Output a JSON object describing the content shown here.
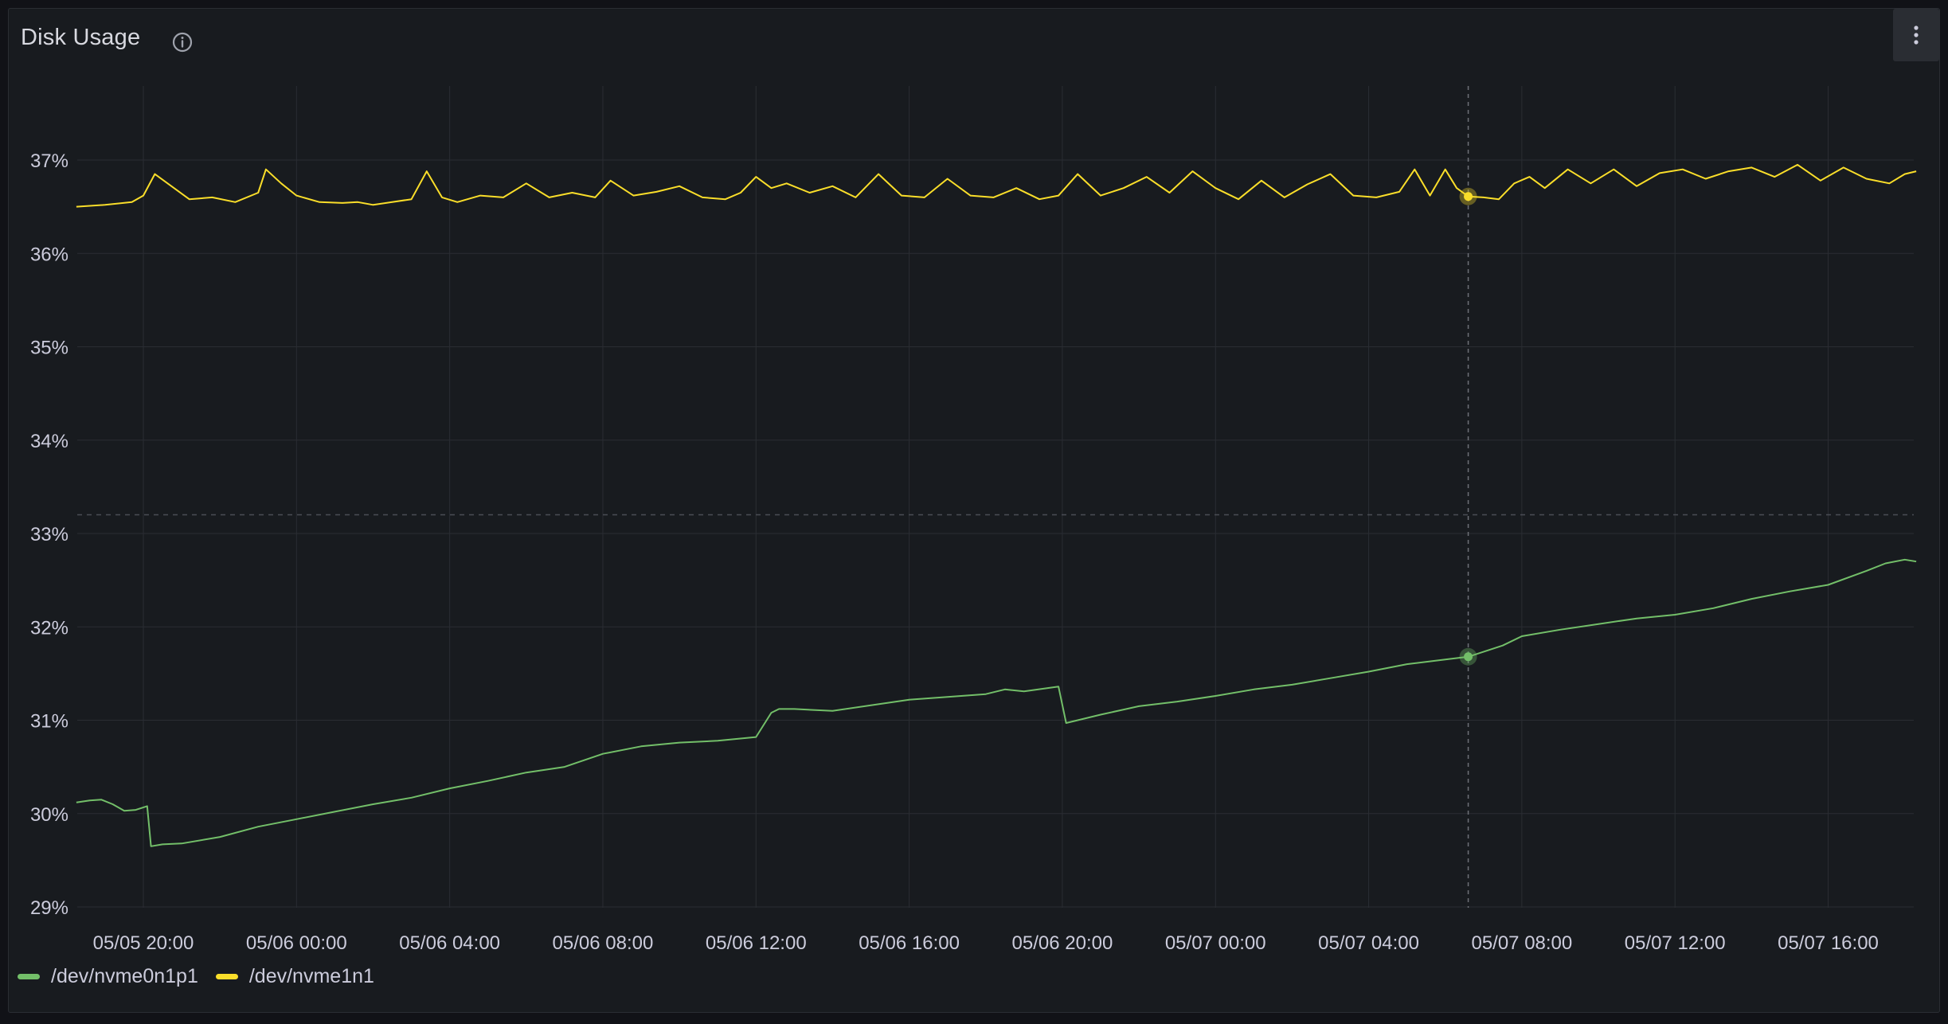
{
  "panel": {
    "title": "Disk Usage",
    "info_icon": "info-circle-icon",
    "menu_icon": "kebab-menu-icon"
  },
  "colors": {
    "background": "#181b1f",
    "grid": "#2a2d33",
    "text": "#ccccdc",
    "nvme0n1p1": "#73bf69",
    "nvme1n1": "#fade2a"
  },
  "legend": [
    {
      "label": "/dev/nvme0n1p1",
      "color": "#73bf69"
    },
    {
      "label": "/dev/nvme1n1",
      "color": "#fade2a"
    }
  ],
  "chart_data": {
    "type": "line",
    "title": "Disk Usage",
    "xlabel": "",
    "ylabel": "",
    "y_unit": "%",
    "ylim": [
      29,
      37.8
    ],
    "y_ticks": [
      "29%",
      "30%",
      "31%",
      "32%",
      "33%",
      "34%",
      "35%",
      "36%",
      "37%"
    ],
    "y_tick_values": [
      29,
      30,
      31,
      32,
      33,
      34,
      35,
      36,
      37
    ],
    "x_ticks": [
      "05/05 20:00",
      "05/06 00:00",
      "05/06 04:00",
      "05/06 08:00",
      "05/06 12:00",
      "05/06 16:00",
      "05/06 20:00",
      "05/07 00:00",
      "05/07 04:00",
      "05/07 08:00",
      "05/07 12:00",
      "05/07 16:00"
    ],
    "x_tick_hours": [
      0,
      4,
      8,
      12,
      16,
      20,
      24,
      28,
      32,
      36,
      40,
      44
    ],
    "x_range_hours": [
      -1.75,
      46.3
    ],
    "hover_hour": 34.6,
    "hover_values": {
      "/dev/nvme0n1p1": 31.68,
      "/dev/nvme1n1": 36.61
    },
    "reference_line": 33.2,
    "grid": true,
    "legend_position": "bottom-left",
    "series": [
      {
        "name": "/dev/nvme0n1p1",
        "color": "#73bf69",
        "x": [
          -1.75,
          -1.4,
          -1.1,
          -0.8,
          -0.5,
          -0.2,
          0.1,
          0.2,
          0.5,
          1.0,
          2.0,
          3.0,
          4.0,
          5.0,
          6.0,
          7.0,
          8.0,
          9.0,
          10.0,
          11.0,
          12.0,
          13.0,
          14.0,
          15.0,
          16.0,
          16.4,
          16.6,
          17.0,
          18.0,
          19.0,
          20.0,
          21.0,
          22.0,
          22.5,
          23.0,
          23.9,
          24.1,
          24.4,
          25.0,
          26.0,
          27.0,
          28.0,
          29.0,
          30.0,
          31.0,
          32.0,
          33.0,
          34.0,
          34.6,
          35.5,
          36.0,
          37.0,
          38.0,
          39.0,
          40.0,
          41.0,
          42.0,
          43.0,
          44.0,
          45.0,
          45.5,
          46.0,
          46.3
        ],
        "y": [
          30.12,
          30.14,
          30.15,
          30.1,
          30.03,
          30.04,
          30.08,
          29.65,
          29.67,
          29.68,
          29.75,
          29.86,
          29.94,
          30.02,
          30.1,
          30.17,
          30.27,
          30.35,
          30.44,
          30.5,
          30.64,
          30.72,
          30.76,
          30.78,
          30.82,
          31.08,
          31.12,
          31.12,
          31.1,
          31.16,
          31.22,
          31.25,
          31.28,
          31.33,
          31.31,
          31.36,
          30.97,
          31.0,
          31.06,
          31.15,
          31.2,
          31.26,
          31.33,
          31.38,
          31.45,
          31.52,
          31.6,
          31.65,
          31.68,
          31.8,
          31.9,
          31.97,
          32.03,
          32.09,
          32.13,
          32.2,
          32.3,
          32.38,
          32.45,
          32.6,
          32.68,
          32.72,
          32.7
        ]
      },
      {
        "name": "/dev/nvme1n1",
        "color": "#fade2a",
        "x": [
          -1.75,
          -1.0,
          -0.3,
          0.0,
          0.3,
          0.8,
          1.2,
          1.8,
          2.4,
          3.0,
          3.2,
          3.6,
          4.0,
          4.6,
          5.2,
          5.6,
          6.0,
          7.0,
          7.4,
          7.8,
          8.2,
          8.8,
          9.4,
          10.0,
          10.6,
          11.2,
          11.8,
          12.2,
          12.8,
          13.4,
          14.0,
          14.6,
          15.2,
          15.6,
          16.0,
          16.4,
          16.8,
          17.4,
          18.0,
          18.6,
          19.2,
          19.8,
          20.4,
          21.0,
          21.6,
          22.2,
          22.8,
          23.4,
          23.9,
          24.4,
          25.0,
          25.6,
          26.2,
          26.8,
          27.4,
          28.0,
          28.6,
          29.2,
          29.8,
          30.4,
          31.0,
          31.6,
          32.2,
          32.8,
          33.2,
          33.6,
          34.0,
          34.3,
          34.6,
          35.0,
          35.4,
          35.8,
          36.2,
          36.6,
          37.2,
          37.8,
          38.4,
          39.0,
          39.6,
          40.2,
          40.8,
          41.4,
          42.0,
          42.6,
          43.2,
          43.8,
          44.4,
          45.0,
          45.6,
          46.0,
          46.3
        ],
        "y": [
          36.5,
          36.52,
          36.55,
          36.62,
          36.85,
          36.7,
          36.58,
          36.6,
          36.55,
          36.65,
          36.9,
          36.75,
          36.62,
          36.55,
          36.54,
          36.55,
          36.52,
          36.58,
          36.88,
          36.6,
          36.55,
          36.62,
          36.6,
          36.75,
          36.6,
          36.65,
          36.6,
          36.78,
          36.62,
          36.66,
          36.72,
          36.6,
          36.58,
          36.65,
          36.82,
          36.7,
          36.75,
          36.65,
          36.72,
          36.6,
          36.85,
          36.62,
          36.6,
          36.8,
          36.62,
          36.6,
          36.7,
          36.58,
          36.62,
          36.85,
          36.62,
          36.7,
          36.82,
          36.65,
          36.88,
          36.7,
          36.58,
          36.78,
          36.6,
          36.74,
          36.85,
          36.62,
          36.6,
          36.66,
          36.9,
          36.62,
          36.9,
          36.7,
          36.61,
          36.6,
          36.58,
          36.75,
          36.82,
          36.7,
          36.9,
          36.75,
          36.9,
          36.72,
          36.86,
          36.9,
          36.8,
          36.88,
          36.92,
          36.82,
          36.95,
          36.78,
          36.92,
          36.8,
          36.75,
          36.85,
          36.88
        ]
      }
    ]
  }
}
